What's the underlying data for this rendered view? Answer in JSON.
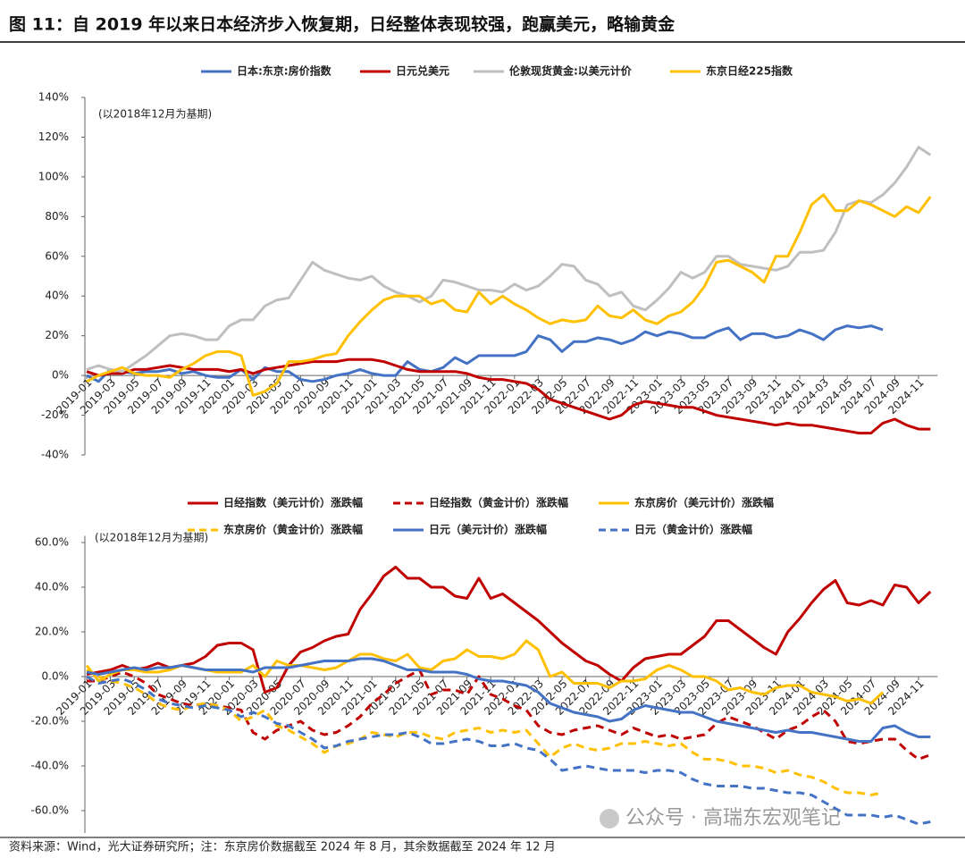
{
  "header": {
    "title": "图 11：自 2019 年以来日本经济步入恢复期，日经整体表现较强，跑赢美元，略输黄金"
  },
  "chart_data": [
    {
      "type": "line",
      "annotation": "(以2018年12月为基期)",
      "legend": "top",
      "categories": [
        "2019-01",
        null,
        "2019-03",
        null,
        "2019-05",
        null,
        "2019-07",
        null,
        "2019-09",
        null,
        "2019-11",
        null,
        "2020-01",
        null,
        "2020-03",
        null,
        "2020-05",
        null,
        "2020-07",
        null,
        "2020-09",
        null,
        "2020-11",
        null,
        "2021-01",
        null,
        "2021-03",
        null,
        "2021-05",
        null,
        "2021-07",
        null,
        "2021-09",
        null,
        "2021-11",
        null,
        "2022-01",
        null,
        "2022-03",
        null,
        "2022-05",
        null,
        "2022-07",
        null,
        "2022-09",
        null,
        "2022-11",
        null,
        "2023-01",
        null,
        "2023-03",
        null,
        "2023-05",
        null,
        "2023-07",
        null,
        "2023-09",
        null,
        "2023-11",
        null,
        "2024-01",
        null,
        "2024-03",
        null,
        "2024-05",
        null,
        "2024-07",
        null,
        "2024-09",
        null,
        "2024-11",
        null
      ],
      "ylim": [
        -40,
        140
      ],
      "yticks": [
        {
          "value": -40,
          "label": "-40%"
        },
        {
          "value": -20,
          "label": "-20%"
        },
        {
          "value": 0,
          "label": "0%"
        },
        {
          "value": 20,
          "label": "20%"
        },
        {
          "value": 40,
          "label": "40%"
        },
        {
          "value": 60,
          "label": "60%"
        },
        {
          "value": 80,
          "label": "80%"
        },
        {
          "value": 100,
          "label": "100%"
        },
        {
          "value": 120,
          "label": "120%"
        },
        {
          "value": 140,
          "label": "140%"
        }
      ],
      "series": [
        {
          "name": "日本:东京:房价指数",
          "color": "#4472c4",
          "line_style": "solid",
          "values": [
            0,
            -3,
            3,
            2,
            1,
            2,
            2,
            3,
            1,
            2,
            0,
            -1,
            -1,
            3,
            -2,
            4,
            2,
            2,
            -2,
            -3,
            -2,
            0,
            1,
            3,
            1,
            0,
            0,
            7,
            3,
            2,
            4,
            9,
            6,
            10,
            10,
            10,
            10,
            12,
            20,
            18,
            12,
            17,
            17,
            19,
            18,
            16,
            18,
            22,
            20,
            22,
            21,
            19,
            19,
            22,
            24,
            18,
            21,
            21,
            19,
            20,
            23,
            21,
            18,
            23,
            25,
            24,
            25,
            23,
            null,
            null,
            null,
            null
          ]
        },
        {
          "name": "日元兑美元",
          "color": "#c00000",
          "line_style": "solid",
          "values": [
            2,
            0,
            1,
            1,
            3,
            3,
            4,
            5,
            4,
            3,
            3,
            3,
            2,
            3,
            1,
            3,
            4,
            5,
            6,
            7,
            7,
            7,
            8,
            8,
            8,
            7,
            5,
            3,
            2,
            2,
            2,
            2,
            1,
            -1,
            -2,
            -2,
            -3,
            -4,
            -7,
            -12,
            -14,
            -16,
            -18,
            -20,
            -22,
            -20,
            -15,
            -13,
            -14,
            -15,
            -16,
            -16,
            -18,
            -20,
            -21,
            -22,
            -23,
            -24,
            -25,
            -24,
            -25,
            -25,
            -26,
            -27,
            -28,
            -29,
            -29,
            -24,
            -22,
            -25,
            -27,
            -27
          ]
        },
        {
          "name": "伦敦现货黄金:以美元计价",
          "color": "#bfbfbf",
          "line_style": "solid",
          "values": [
            3,
            5,
            3,
            2,
            6,
            10,
            15,
            20,
            21,
            20,
            18,
            18,
            25,
            28,
            28,
            35,
            38,
            39,
            48,
            57,
            53,
            51,
            49,
            48,
            50,
            45,
            42,
            40,
            37,
            40,
            48,
            47,
            45,
            43,
            43,
            42,
            46,
            43,
            45,
            50,
            56,
            55,
            48,
            46,
            40,
            42,
            35,
            33,
            38,
            44,
            52,
            49,
            52,
            60,
            60,
            56,
            55,
            54,
            53,
            55,
            62,
            62,
            63,
            72,
            86,
            88,
            87,
            91,
            97,
            105,
            115,
            111
          ]
        },
        {
          "name": "东京日经225指数",
          "color": "#ffc000",
          "line_style": "solid",
          "values": [
            -3,
            0,
            2,
            4,
            1,
            0,
            0,
            -1,
            3,
            6,
            10,
            12,
            12,
            10,
            -10,
            -8,
            -4,
            7,
            7,
            8,
            10,
            11,
            20,
            27,
            33,
            38,
            40,
            40,
            40,
            36,
            38,
            33,
            32,
            42,
            36,
            40,
            36,
            33,
            29,
            26,
            28,
            27,
            28,
            35,
            30,
            29,
            33,
            28,
            26,
            30,
            32,
            37,
            45,
            57,
            58,
            55,
            52,
            47,
            60,
            60,
            72,
            86,
            91,
            83,
            83,
            88,
            86,
            83,
            80,
            85,
            82,
            90
          ]
        }
      ]
    },
    {
      "type": "line",
      "annotation": "(以2018年12月为基期)",
      "legend": "top",
      "categories": [
        "2019-01",
        null,
        "2019-03",
        null,
        "2019-05",
        null,
        "2019-07",
        null,
        "2019-09",
        null,
        "2019-11",
        null,
        "2020-01",
        null,
        "2020-03",
        null,
        "2020-05",
        null,
        "2020-07",
        null,
        "2020-09",
        null,
        "2020-11",
        null,
        "2021-01",
        null,
        "2021-03",
        null,
        "2021-05",
        null,
        "2021-07",
        null,
        "2021-09",
        null,
        "2021-11",
        null,
        "2022-01",
        null,
        "2022-03",
        null,
        "2022-05",
        null,
        "2022-07",
        null,
        "2022-09",
        null,
        "2022-11",
        null,
        "2023-01",
        null,
        "2023-03",
        null,
        "2023-05",
        null,
        "2023-07",
        null,
        "2023-09",
        null,
        "2023-11",
        null,
        "2024-01",
        null,
        "2024-03",
        null,
        "2024-05",
        null,
        "2024-07",
        null,
        "2024-09",
        null,
        "2024-11",
        null
      ],
      "ylim": [
        -70,
        63
      ],
      "yticks": [
        {
          "value": -60,
          "label": "-60.0%"
        },
        {
          "value": -40,
          "label": "-40.0%"
        },
        {
          "value": -20,
          "label": "-20.0%"
        },
        {
          "value": 0,
          "label": "0.0%"
        },
        {
          "value": 20,
          "label": "20.0%"
        },
        {
          "value": 40,
          "label": "40.0%"
        },
        {
          "value": 60,
          "label": "60.0%"
        }
      ],
      "series": [
        {
          "name": "日经指数（美元计价）涨跌幅",
          "color": "#c00000",
          "line_style": "solid",
          "values": [
            1,
            2,
            3,
            5,
            3,
            4,
            6,
            4,
            5,
            6,
            9,
            14,
            15,
            15,
            12,
            -7,
            -5,
            5,
            11,
            13,
            16,
            18,
            19,
            30,
            37,
            45,
            49,
            44,
            44,
            40,
            40,
            36,
            35,
            44,
            35,
            37,
            33,
            29,
            25,
            20,
            15,
            11,
            7,
            5,
            1,
            -2,
            4,
            8,
            9,
            10,
            10,
            14,
            18,
            25,
            25,
            21,
            17,
            13,
            10,
            20,
            26,
            33,
            39,
            43,
            33,
            32,
            34,
            32,
            41,
            40,
            33,
            38
          ]
        },
        {
          "name": "日经指数（黄金计价）涨跌幅",
          "color": "#c00000",
          "line_style": "dashed",
          "values": [
            -2,
            -2,
            0,
            2,
            0,
            -3,
            -8,
            -10,
            -12,
            -13,
            -12,
            -13,
            -14,
            -15,
            -25,
            -28,
            -24,
            -22,
            -20,
            -24,
            -26,
            -25,
            -22,
            -18,
            -12,
            -8,
            -3,
            0,
            3,
            -8,
            -6,
            -6,
            -8,
            0,
            -8,
            -10,
            -13,
            -15,
            -22,
            -25,
            -26,
            -24,
            -23,
            -22,
            -24,
            -26,
            -23,
            -25,
            -27,
            -26,
            -28,
            -27,
            -26,
            -21,
            -18,
            -20,
            -22,
            -25,
            -28,
            -24,
            -22,
            -18,
            -15,
            -20,
            -29,
            -30,
            -29,
            -28,
            -28,
            -33,
            -37,
            -35
          ]
        },
        {
          "name": "东京房价（美元计价）涨跌幅",
          "color": "#ffc000",
          "line_style": "solid",
          "values": [
            5,
            -2,
            1,
            3,
            3,
            2,
            2,
            3,
            5,
            4,
            3,
            2,
            2,
            2,
            5,
            0,
            7,
            5,
            5,
            4,
            3,
            4,
            7,
            10,
            10,
            8,
            7,
            10,
            4,
            3,
            7,
            8,
            12,
            9,
            9,
            8,
            10,
            16,
            12,
            0,
            2,
            -3,
            -3,
            -3,
            -5,
            -2,
            -2,
            -1,
            3,
            5,
            3,
            0,
            0,
            -2,
            -6,
            -5,
            -7,
            -8,
            -5,
            -4,
            -4,
            -7,
            -8,
            -9,
            -11,
            -10,
            -12,
            -7,
            null,
            null,
            null,
            null
          ]
        },
        {
          "name": "东京房价（黄金计价）涨跌幅",
          "color": "#ffc000",
          "line_style": "dashed",
          "values": [
            3,
            0,
            -2,
            -3,
            -5,
            -8,
            -12,
            -14,
            -15,
            -13,
            -12,
            -13,
            -15,
            -20,
            -18,
            -15,
            -22,
            -24,
            -27,
            -30,
            -34,
            -31,
            -30,
            -28,
            -25,
            -26,
            -27,
            -25,
            -25,
            -27,
            -28,
            -25,
            -24,
            -23,
            -25,
            -24,
            -25,
            -24,
            -30,
            -36,
            -32,
            -30,
            -32,
            -33,
            -32,
            -30,
            -30,
            -29,
            -30,
            -31,
            -30,
            -34,
            -37,
            -37,
            -38,
            -40,
            -40,
            -41,
            -43,
            -42,
            -44,
            -45,
            -47,
            -50,
            -52,
            -52,
            -53,
            -52,
            null,
            null,
            null,
            null
          ]
        },
        {
          "name": "日元（美元计价）涨跌幅",
          "color": "#4472c4",
          "line_style": "solid",
          "values": [
            2,
            1,
            2,
            3,
            4,
            3,
            4,
            4,
            5,
            4,
            3,
            3,
            3,
            3,
            2,
            4,
            4,
            4,
            5,
            6,
            7,
            7,
            7,
            8,
            8,
            7,
            5,
            3,
            3,
            2,
            2,
            2,
            1,
            -1,
            -2,
            -2,
            -3,
            -4,
            -7,
            -12,
            -14,
            -16,
            -17,
            -18,
            -20,
            -19,
            -15,
            -13,
            -14,
            -15,
            -16,
            -16,
            -18,
            -20,
            -21,
            -22,
            -23,
            -24,
            -25,
            -24,
            -25,
            -25,
            -26,
            -27,
            -28,
            -29,
            -29,
            -23,
            -22,
            -25,
            -27,
            -27
          ]
        },
        {
          "name": "日元（黄金计价）涨跌幅",
          "color": "#4472c4",
          "line_style": "dashed",
          "values": [
            0,
            -3,
            -2,
            -1,
            -3,
            -6,
            -10,
            -12,
            -13,
            -14,
            -13,
            -14,
            -15,
            -18,
            -16,
            -18,
            -21,
            -22,
            -25,
            -28,
            -32,
            -31,
            -29,
            -28,
            -27,
            -26,
            -26,
            -25,
            -27,
            -30,
            -30,
            -29,
            -28,
            -29,
            -31,
            -31,
            -30,
            -32,
            -33,
            -37,
            -42,
            -41,
            -40,
            -41,
            -42,
            -42,
            -42,
            -43,
            -42,
            -42,
            -43,
            -46,
            -48,
            -49,
            -49,
            -49,
            -50,
            -50,
            -51,
            -52,
            -52,
            -53,
            -56,
            -59,
            -62,
            -62,
            -62,
            -63,
            -62,
            -64,
            -66,
            -65
          ]
        }
      ]
    }
  ],
  "footer": {
    "source": "资料来源：Wind，光大证券研究所；注：东京房价数据截至 2024 年 8 月，其余数据截至 2024 年 12 月",
    "watermark": "公众号 · 高瑞东宏观笔记"
  }
}
